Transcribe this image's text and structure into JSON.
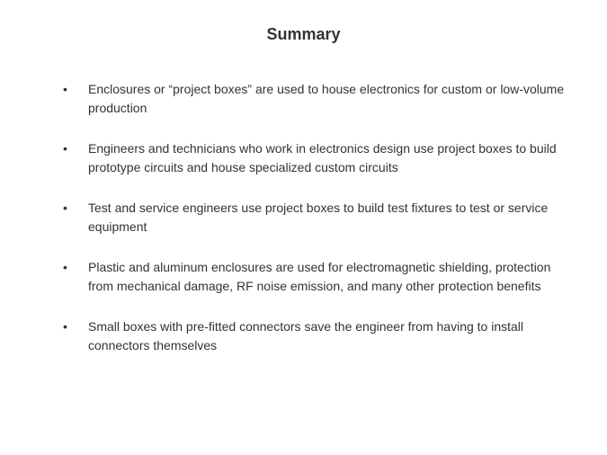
{
  "title": "Summary",
  "bullets": [
    "Enclosures or “project boxes” are used to house electronics for custom or low-volume production",
    "Engineers and technicians who work in electronics design use project boxes to build prototype circuits and house specialized custom circuits",
    "Test and service engineers use project boxes to build test fixtures to test or service equipment",
    "Plastic and aluminum enclosures are used for electromagnetic shielding, protection from mechanical damage, RF noise emission, and many other protection benefits",
    "Small boxes with pre-fitted connectors save the engineer from having to install connectors themselves"
  ]
}
